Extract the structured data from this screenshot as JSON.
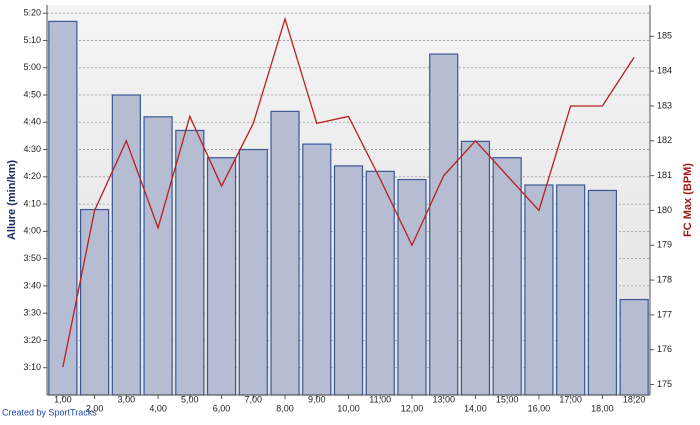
{
  "chart_data": {
    "type": "bar",
    "y_label": "Allure (min/km)",
    "y2_label": "FC Max (BPM)",
    "credit": "Created by SportTracks",
    "categories": [
      "1,00",
      "2,00",
      "3,00",
      "4,00",
      "5,00",
      "6,00",
      "7,00",
      "8,00",
      "9,00",
      "10,00",
      "11,00",
      "12,00",
      "13,00",
      "14,00",
      "15,00",
      "16,00",
      "17,00",
      "18,00",
      "18,20"
    ],
    "series": [
      {
        "type": "bar",
        "color": "#b6bdd3",
        "edge": "#3a5894",
        "values": [
          317,
          248,
          290,
          282,
          277,
          267,
          270,
          284,
          272,
          264,
          262,
          259,
          305,
          273,
          267,
          257,
          257,
          255,
          215
        ]
      },
      {
        "type": "line",
        "color": "#b82020",
        "axis": "y2",
        "values": [
          175.5,
          180,
          182,
          179.5,
          182.7,
          180.7,
          182.5,
          185.5,
          182.5,
          182.7,
          180.9,
          179,
          181,
          182,
          181,
          180,
          183,
          183,
          184.4
        ]
      }
    ],
    "ylim": [
      180,
      323
    ],
    "yticks": [
      {
        "value": 190,
        "label": "3:10"
      },
      {
        "value": 200,
        "label": "3:20"
      },
      {
        "value": 210,
        "label": "3:30"
      },
      {
        "value": 220,
        "label": "3:40"
      },
      {
        "value": 230,
        "label": "3:50"
      },
      {
        "value": 240,
        "label": "4:00"
      },
      {
        "value": 250,
        "label": "4:10"
      },
      {
        "value": 260,
        "label": "4:20"
      },
      {
        "value": 270,
        "label": "4:30"
      },
      {
        "value": 280,
        "label": "4:40"
      },
      {
        "value": 290,
        "label": "4:50"
      },
      {
        "value": 300,
        "label": "5:00"
      },
      {
        "value": 310,
        "label": "5:10"
      },
      {
        "value": 320,
        "label": "5:20"
      }
    ],
    "y2lim": [
      174.7,
      185.9
    ],
    "y2ticks": [
      175,
      176,
      177,
      178,
      179,
      180,
      181,
      182,
      183,
      184,
      185
    ],
    "grid": true
  }
}
